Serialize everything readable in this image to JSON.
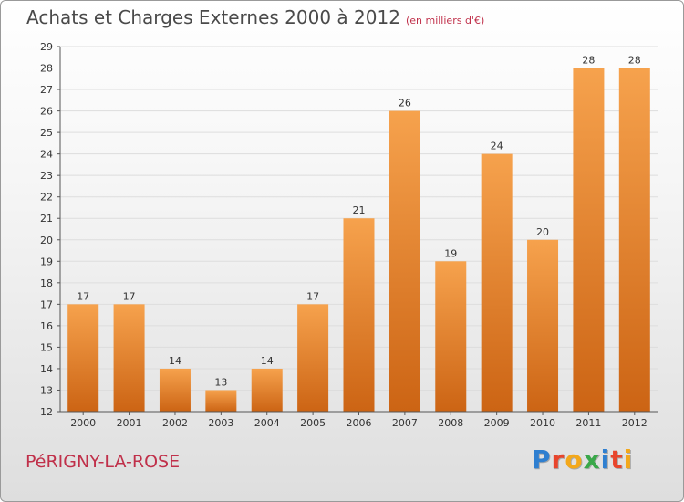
{
  "title": {
    "main": "Achats et Charges Externes 2000 à 2012",
    "unit": "(en milliers d'€)"
  },
  "place_name": "PéRIGNY-LA-ROSE",
  "brand": {
    "letters": [
      "P",
      "r",
      "o",
      "x",
      "i",
      "t",
      "i"
    ],
    "colors": [
      "#2f7fd0",
      "#e8452c",
      "#f3a81b",
      "#3aa84a",
      "#2f7fd0",
      "#e8452c",
      "#f3a81b"
    ]
  },
  "colors": {
    "bar_light": "#f6a24d",
    "bar_dark": "#cc6414",
    "axis": "#555555",
    "grid": "#dddddd",
    "text": "#333333"
  },
  "chart_data": {
    "type": "bar",
    "categories": [
      "2000",
      "2001",
      "2002",
      "2003",
      "2004",
      "2005",
      "2006",
      "2007",
      "2008",
      "2009",
      "2010",
      "2011",
      "2012"
    ],
    "values": [
      17,
      17,
      14,
      13,
      14,
      17,
      21,
      26,
      19,
      24,
      20,
      28,
      28
    ],
    "data_labels": [
      "17",
      "17",
      "14",
      "13",
      "14",
      "17",
      "21",
      "26",
      "19",
      "24",
      "20",
      "28",
      "28"
    ],
    "ylim": [
      12,
      29
    ],
    "yticks": [
      12,
      13,
      14,
      15,
      16,
      17,
      18,
      19,
      20,
      21,
      22,
      23,
      24,
      25,
      26,
      27,
      28,
      29
    ],
    "grid": true,
    "xlabel": "",
    "ylabel": ""
  }
}
